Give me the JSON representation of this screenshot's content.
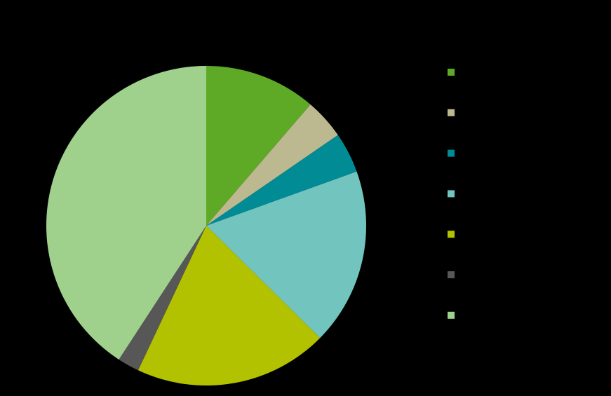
{
  "chart_data": {
    "type": "pie",
    "values": [
      11.3,
      4.1,
      4.1,
      17.9,
      19.6,
      2.2,
      40.8
    ],
    "colors": [
      "#5eaa26",
      "#bcb88f",
      "#008b95",
      "#72c5bf",
      "#b3c200",
      "#575757",
      "#9fd18c"
    ]
  }
}
